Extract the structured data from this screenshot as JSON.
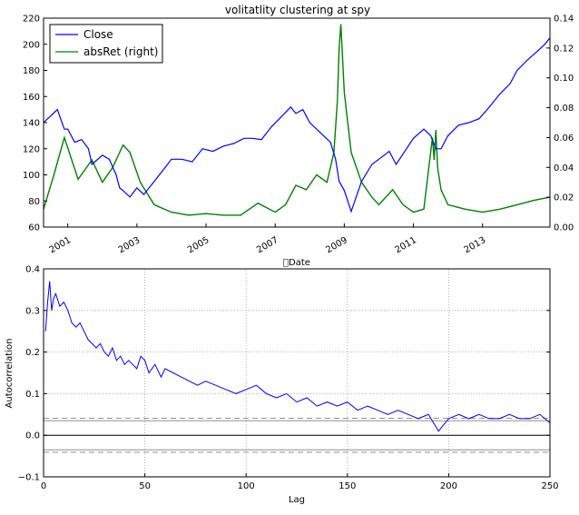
{
  "chart_data": [
    {
      "type": "line",
      "title": "volitatlity clustering at spy",
      "xlabel": "Date",
      "ylabel": "",
      "x_tick_labels": [
        "2001",
        "2003",
        "2005",
        "2007",
        "2009",
        "2011",
        "2013"
      ],
      "x_tick_values": [
        2001,
        2003,
        2005,
        2007,
        2009,
        2011,
        2013
      ],
      "xlim": [
        2000.3,
        2014.95
      ],
      "y_left": {
        "ylim": [
          60,
          220
        ],
        "ticks": [
          60,
          80,
          100,
          120,
          140,
          160,
          180,
          200,
          220
        ]
      },
      "y_right": {
        "ylim": [
          0,
          0.14
        ],
        "ticks": [
          "0.00",
          "0.02",
          "0.04",
          "0.06",
          "0.08",
          "0.10",
          "0.12",
          "0.14"
        ]
      },
      "legend": {
        "placement": "top-left",
        "entries": [
          "Close",
          "absRet (right)"
        ]
      },
      "series": [
        {
          "name": "Close",
          "axis": "left",
          "color": "#0000ff",
          "x": [
            2000.3,
            2000.5,
            2000.7,
            2000.9,
            2001.0,
            2001.2,
            2001.4,
            2001.6,
            2001.7,
            2002.0,
            2002.2,
            2002.4,
            2002.5,
            2002.6,
            2002.8,
            2003.0,
            2003.2,
            2003.5,
            2003.8,
            2004.0,
            2004.3,
            2004.6,
            2004.9,
            2005.2,
            2005.5,
            2005.8,
            2006.1,
            2006.35,
            2006.6,
            2006.9,
            2007.2,
            2007.45,
            2007.6,
            2007.8,
            2008.0,
            2008.2,
            2008.4,
            2008.6,
            2008.75,
            2008.85,
            2009.0,
            2009.2,
            2009.5,
            2009.8,
            2010.0,
            2010.3,
            2010.5,
            2010.8,
            2011.0,
            2011.3,
            2011.5,
            2011.65,
            2011.8,
            2012.0,
            2012.3,
            2012.6,
            2012.9,
            2013.2,
            2013.5,
            2013.8,
            2014.0,
            2014.3,
            2014.6,
            2014.8,
            2014.95
          ],
          "y": [
            140,
            145,
            150,
            135,
            135,
            125,
            127,
            120,
            108,
            115,
            112,
            100,
            90,
            88,
            83,
            90,
            85,
            95,
            105,
            112,
            112,
            110,
            120,
            118,
            122,
            124,
            128,
            128,
            127,
            137,
            145,
            152,
            147,
            150,
            140,
            135,
            130,
            125,
            112,
            95,
            88,
            72,
            95,
            108,
            112,
            118,
            108,
            120,
            128,
            135,
            130,
            120,
            120,
            130,
            138,
            140,
            143,
            152,
            162,
            170,
            180,
            188,
            195,
            200,
            205
          ]
        },
        {
          "name": "absRet (right)",
          "axis": "right",
          "color": "#008000",
          "x": [
            2000.3,
            2000.6,
            2000.9,
            2001.3,
            2001.7,
            2002.0,
            2002.3,
            2002.6,
            2002.8,
            2003.1,
            2003.5,
            2004.0,
            2004.5,
            2005.0,
            2005.5,
            2006.0,
            2006.5,
            2007.0,
            2007.3,
            2007.6,
            2007.9,
            2008.2,
            2008.5,
            2008.7,
            2008.8,
            2008.85,
            2008.9,
            2009.0,
            2009.2,
            2009.5,
            2009.8,
            2010.0,
            2010.4,
            2010.7,
            2011.0,
            2011.3,
            2011.55,
            2011.6,
            2011.65,
            2011.7,
            2011.8,
            2012.0,
            2012.5,
            2013.0,
            2013.5,
            2014.0,
            2014.5,
            2014.95
          ],
          "y": [
            0.012,
            0.035,
            0.06,
            0.032,
            0.045,
            0.03,
            0.04,
            0.055,
            0.05,
            0.03,
            0.015,
            0.01,
            0.008,
            0.009,
            0.008,
            0.008,
            0.016,
            0.01,
            0.015,
            0.028,
            0.025,
            0.035,
            0.03,
            0.05,
            0.085,
            0.12,
            0.136,
            0.09,
            0.05,
            0.03,
            0.02,
            0.015,
            0.025,
            0.015,
            0.01,
            0.012,
            0.06,
            0.045,
            0.065,
            0.04,
            0.025,
            0.015,
            0.012,
            0.01,
            0.012,
            0.015,
            0.018,
            0.02
          ]
        }
      ]
    },
    {
      "type": "line",
      "title": "",
      "xlabel": "Lag",
      "ylabel": "Autocorrelation",
      "xlim": [
        0,
        250
      ],
      "ylim": [
        -0.1,
        0.4
      ],
      "x_ticks": [
        0,
        50,
        100,
        150,
        200,
        250
      ],
      "y_ticks": [
        "−0.1",
        "0.0",
        "0.1",
        "0.2",
        "0.3",
        "0.4"
      ],
      "y_tick_values": [
        -0.1,
        0.0,
        0.1,
        0.2,
        0.3,
        0.4
      ],
      "grid": true,
      "reference_lines": [
        {
          "y": 0.0,
          "style": "solid"
        },
        {
          "y": 0.041,
          "style": "dashed"
        },
        {
          "y": 0.035,
          "style": "solid"
        },
        {
          "y": -0.035,
          "style": "solid"
        },
        {
          "y": -0.041,
          "style": "dashed"
        }
      ],
      "series": [
        {
          "name": "",
          "color": "#0000ff",
          "x": [
            1,
            2,
            3,
            4,
            5,
            6,
            8,
            10,
            12,
            14,
            16,
            18,
            20,
            22,
            24,
            26,
            28,
            30,
            32,
            34,
            36,
            38,
            40,
            42,
            44,
            46,
            48,
            50,
            52,
            55,
            58,
            60,
            64,
            68,
            72,
            76,
            80,
            85,
            90,
            95,
            100,
            105,
            110,
            115,
            120,
            125,
            130,
            135,
            140,
            145,
            150,
            155,
            160,
            165,
            170,
            175,
            180,
            185,
            190,
            195,
            200,
            205,
            210,
            215,
            220,
            225,
            230,
            235,
            240,
            245,
            250
          ],
          "y": [
            0.25,
            0.32,
            0.37,
            0.3,
            0.33,
            0.34,
            0.31,
            0.32,
            0.3,
            0.27,
            0.26,
            0.27,
            0.25,
            0.23,
            0.22,
            0.21,
            0.22,
            0.2,
            0.19,
            0.21,
            0.18,
            0.19,
            0.17,
            0.18,
            0.17,
            0.16,
            0.19,
            0.18,
            0.15,
            0.17,
            0.14,
            0.16,
            0.15,
            0.14,
            0.13,
            0.12,
            0.13,
            0.12,
            0.11,
            0.1,
            0.11,
            0.12,
            0.1,
            0.09,
            0.1,
            0.08,
            0.09,
            0.07,
            0.08,
            0.07,
            0.08,
            0.06,
            0.07,
            0.06,
            0.05,
            0.06,
            0.05,
            0.04,
            0.05,
            0.01,
            0.04,
            0.05,
            0.04,
            0.05,
            0.04,
            0.04,
            0.05,
            0.04,
            0.04,
            0.05,
            0.03
          ]
        }
      ]
    }
  ]
}
